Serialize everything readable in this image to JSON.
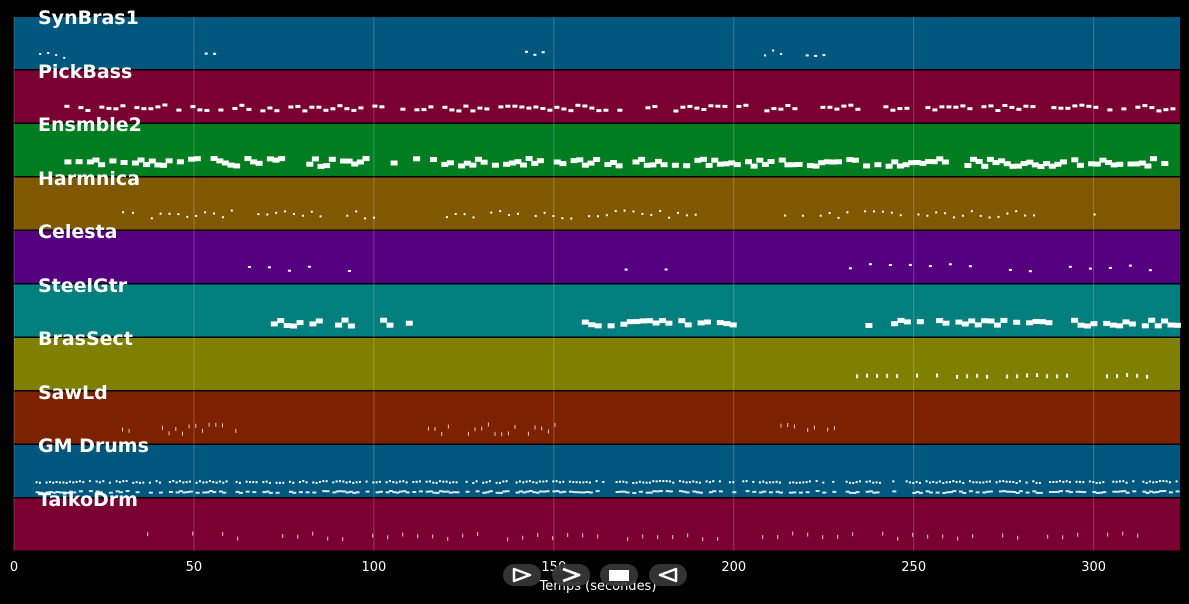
{
  "tracks": [
    {
      "name": "SynBras1",
      "color": "#00577e"
    },
    {
      "name": "PickBass",
      "color": "#7a0031"
    },
    {
      "name": "Ensmble2",
      "color": "#007d21"
    },
    {
      "name": "Harmnica",
      "color": "#7f5800"
    },
    {
      "name": "Celesta",
      "color": "#55007e"
    },
    {
      "name": "SteelGtr",
      "color": "#007f7e"
    },
    {
      "name": "BrasSect",
      "color": "#7f7f00"
    },
    {
      "name": "SawLd",
      "color": "#7d2200"
    },
    {
      "name": "GM Drums",
      "color": "#00577e"
    },
    {
      "name": "TaikoDrm",
      "color": "#7a0031"
    }
  ],
  "axis": {
    "label": "Temps (secondes)",
    "min": 0,
    "max": 324,
    "ticks": [
      {
        "value": 0,
        "label": "0"
      },
      {
        "value": 50,
        "label": "50"
      },
      {
        "value": 100,
        "label": "100"
      },
      {
        "value": 150,
        "label": "150"
      },
      {
        "value": 200,
        "label": "200"
      },
      {
        "value": 250,
        "label": "250"
      },
      {
        "value": 300,
        "label": "300"
      }
    ]
  },
  "controls": [
    {
      "name": "play-button",
      "icon": "play-icon"
    },
    {
      "name": "fast-forward-button",
      "icon": "fast-forward-icon"
    },
    {
      "name": "stop-button",
      "icon": "stop-icon"
    },
    {
      "name": "rewind-button",
      "icon": "rewind-icon"
    }
  ]
}
